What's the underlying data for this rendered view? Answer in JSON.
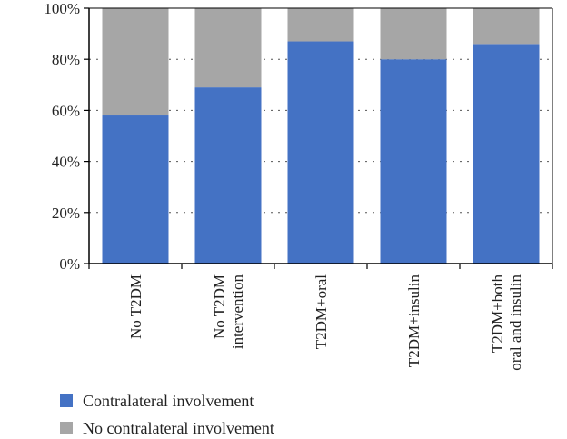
{
  "chart_data": {
    "type": "bar",
    "stacked": true,
    "categories": [
      [
        "No T2DM"
      ],
      [
        "No T2DM",
        "intervention"
      ],
      [
        "T2DM+oral"
      ],
      [
        "T2DM+insulin"
      ],
      [
        "T2DM+both",
        "oral and insulin"
      ]
    ],
    "series": [
      {
        "name": "Contralateral involvement",
        "color": "#4472C4",
        "values": [
          58,
          69,
          87,
          80,
          86
        ]
      },
      {
        "name": "No contralateral involvement",
        "color": "#A6A6A6",
        "values": [
          42,
          31,
          13,
          20,
          14
        ]
      }
    ],
    "ylim": [
      0,
      100
    ],
    "yticks": [
      0,
      20,
      40,
      60,
      80,
      100
    ],
    "ytick_labels": [
      "0%",
      "20%",
      "40%",
      "60%",
      "80%",
      "100%"
    ],
    "grid": "horizontal-dotted",
    "legend": "bottom-left",
    "title": "",
    "xlabel": "",
    "ylabel": ""
  }
}
